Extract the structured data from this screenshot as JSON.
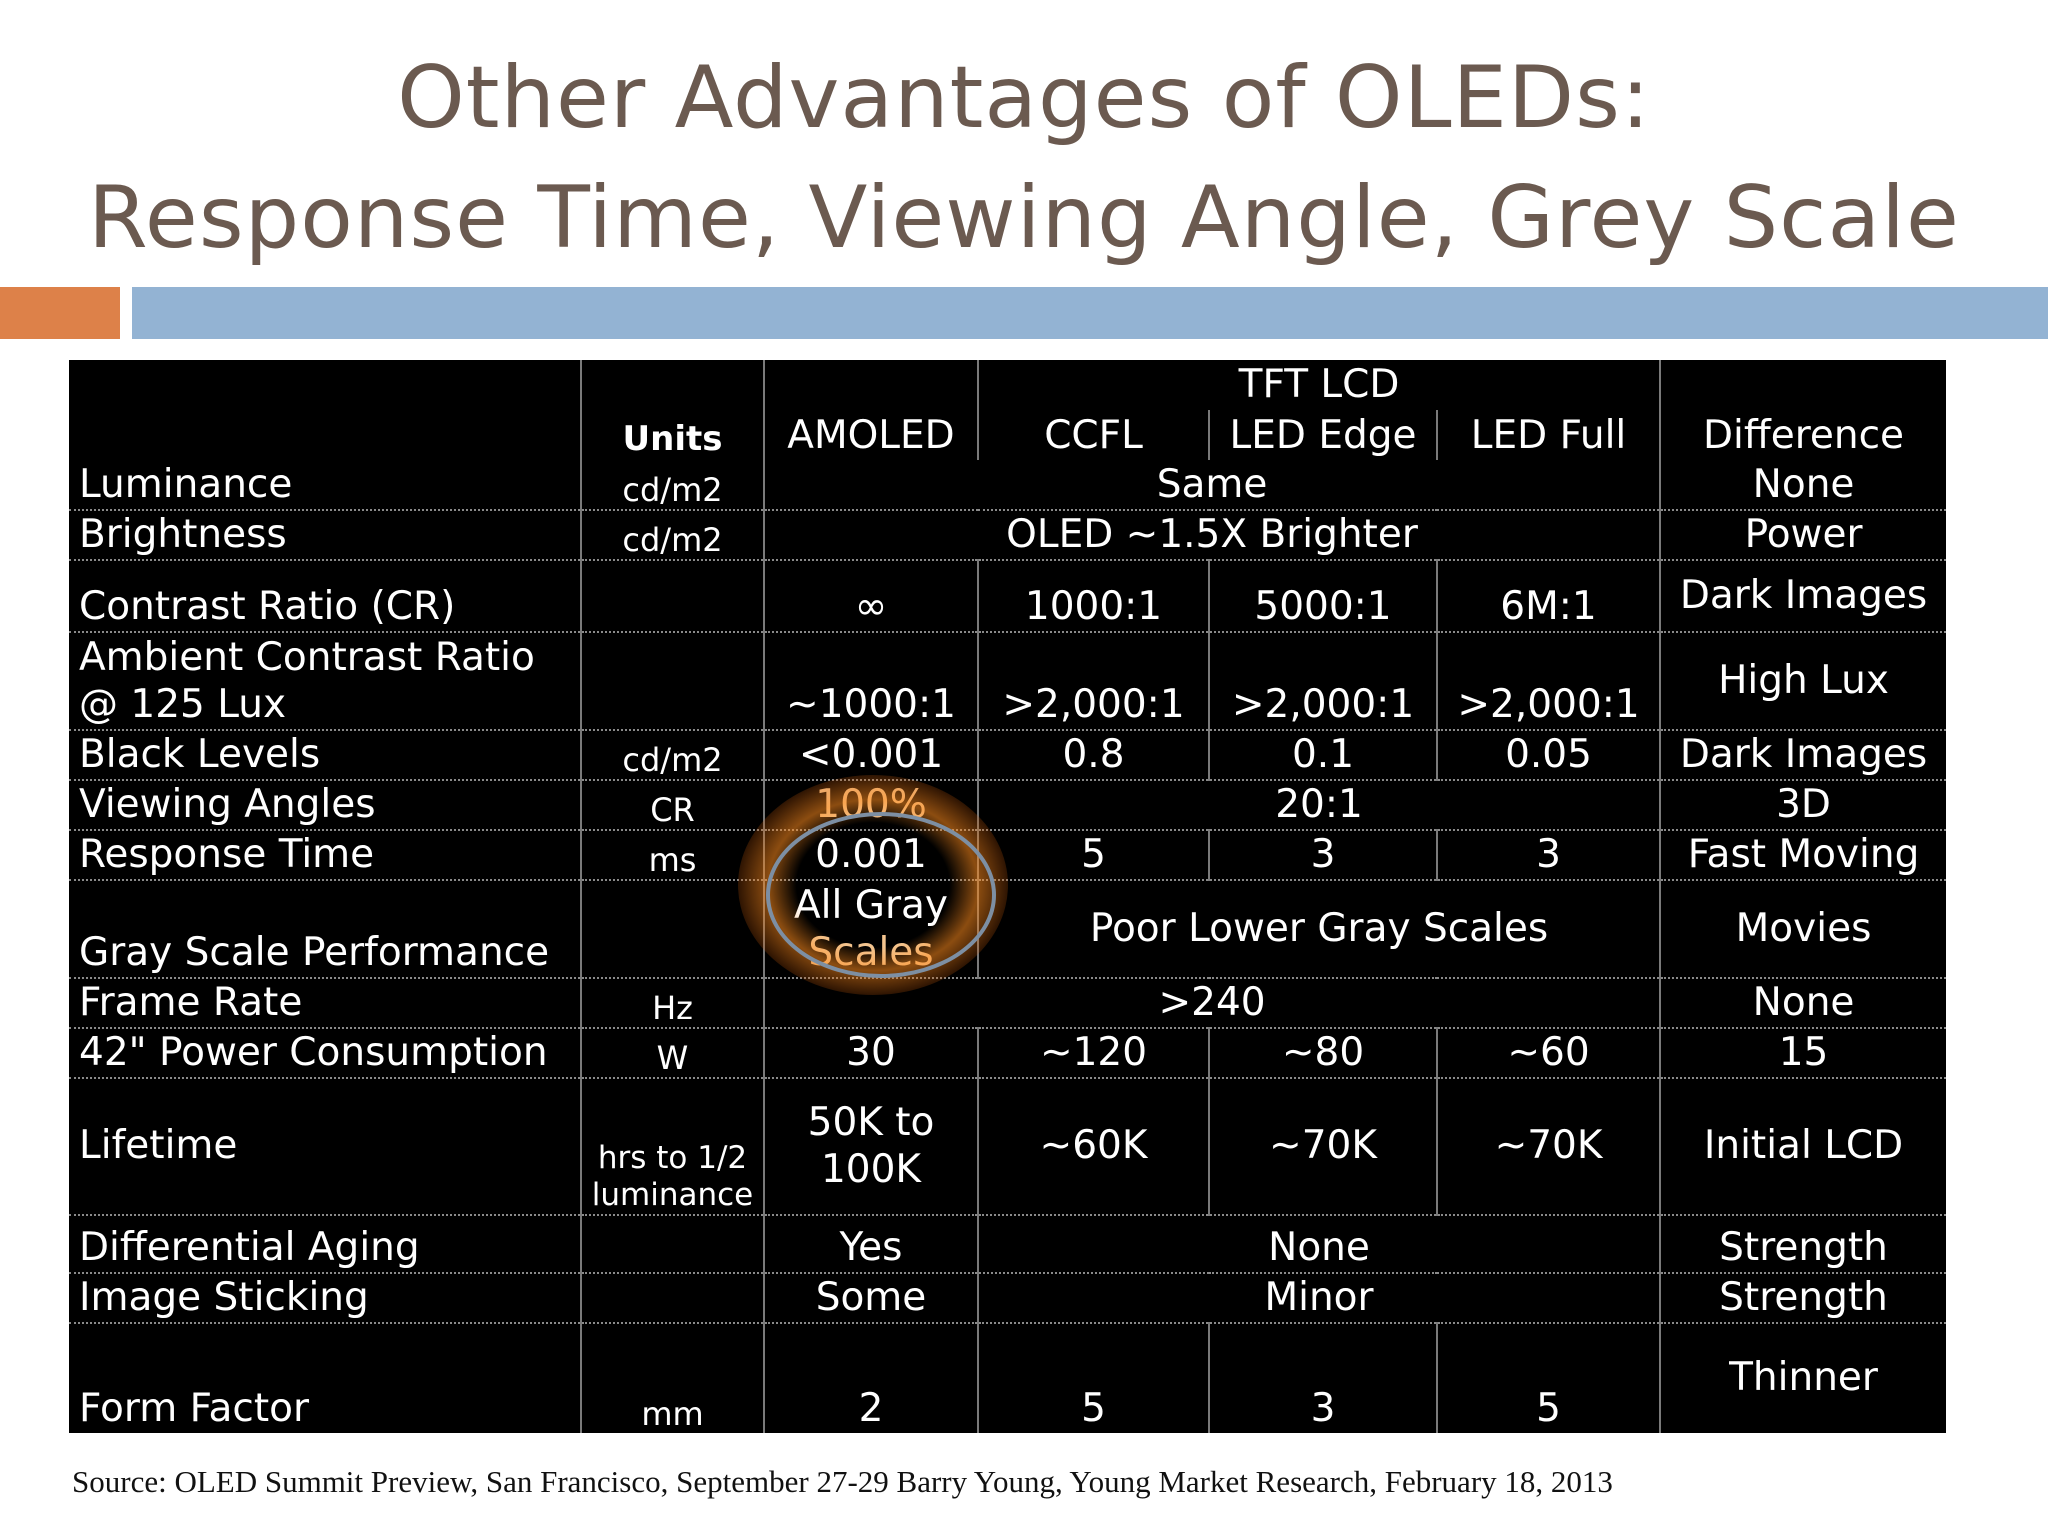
{
  "title": {
    "line1": "Other Advantages of OLEDs:",
    "line2": "Response Time, Viewing Angle, Grey Scale"
  },
  "colors": {
    "title": "#6b5a50",
    "accent_orange": "#dd8149",
    "accent_blue": "#93b3d3",
    "highlight": "#f08a24"
  },
  "table": {
    "header": {
      "group": "TFT LCD",
      "units": "Units",
      "amoled": "AMOLED",
      "ccfl": "CCFL",
      "led_edge": "LED Edge",
      "led_full": "LED Full",
      "difference": "Difference"
    },
    "rows": {
      "luminance": {
        "label": "Luminance",
        "units": "cd/m2",
        "all": "Same",
        "diff": "None"
      },
      "brightness": {
        "label": "Brightness",
        "units": "cd/m2",
        "all": "OLED ~1.5X Brighter",
        "diff": "Power"
      },
      "contrast": {
        "label": "Contrast Ratio (CR)",
        "units": "",
        "amoled": "∞",
        "ccfl": "1000:1",
        "led_edge": "5000:1",
        "led_full": "6M:1",
        "diff": "Dark Images"
      },
      "ambient": {
        "label1": "Ambient Contrast Ratio",
        "label2": "@ 125 Lux",
        "units": "",
        "amoled": "~1000:1",
        "ccfl": ">2,000:1",
        "led_edge": ">2,000:1",
        "led_full": ">2,000:1",
        "diff": "High Lux"
      },
      "black": {
        "label": "Black Levels",
        "units": "cd/m2",
        "amoled": "<0.001",
        "ccfl": "0.8",
        "led_edge": "0.1",
        "led_full": "0.05",
        "diff": "Dark Images"
      },
      "viewing": {
        "label": "Viewing Angles",
        "units": "CR",
        "amoled": "100%",
        "lcd": "20:1",
        "diff": "3D"
      },
      "response": {
        "label": "Response Time",
        "units": "ms",
        "amoled": "0.001",
        "ccfl": "5",
        "led_edge": "3",
        "led_full": "3",
        "diff": "Fast Moving"
      },
      "gray": {
        "label": "Gray Scale Performance",
        "units": "",
        "amoled1": "All Gray",
        "amoled2": "Scales",
        "lcd": "Poor Lower Gray Scales",
        "diff": "Movies"
      },
      "frame": {
        "label": "Frame Rate",
        "units": "Hz",
        "all": ">240",
        "diff": "None"
      },
      "power": {
        "label": "42\" Power Consumption",
        "units": "W",
        "amoled": "30",
        "ccfl": "~120",
        "led_edge": "~80",
        "led_full": "~60",
        "diff": "15"
      },
      "lifetime": {
        "label": "Lifetime",
        "units1": "hrs to 1/2",
        "units2": "luminance",
        "amoled1": "50K to",
        "amoled2": "100K",
        "ccfl": "~60K",
        "led_edge": "~70K",
        "led_full": "~70K",
        "diff": "Initial LCD"
      },
      "aging": {
        "label": "Differential Aging",
        "units": "",
        "amoled": "Yes",
        "lcd": "None",
        "diff": "Strength"
      },
      "sticking": {
        "label": "Image Sticking",
        "units": "",
        "amoled": "Some",
        "lcd": "Minor",
        "diff": "Strength"
      },
      "form": {
        "label": "Form Factor",
        "units": "mm",
        "amoled": "2",
        "ccfl": "5",
        "led_edge": "3",
        "led_full": "5",
        "diff": "Thinner"
      }
    }
  },
  "source": "Source: OLED Summit Preview, San Francisco, September 27-29 Barry Young, Young Market Research, February 18, 2013"
}
